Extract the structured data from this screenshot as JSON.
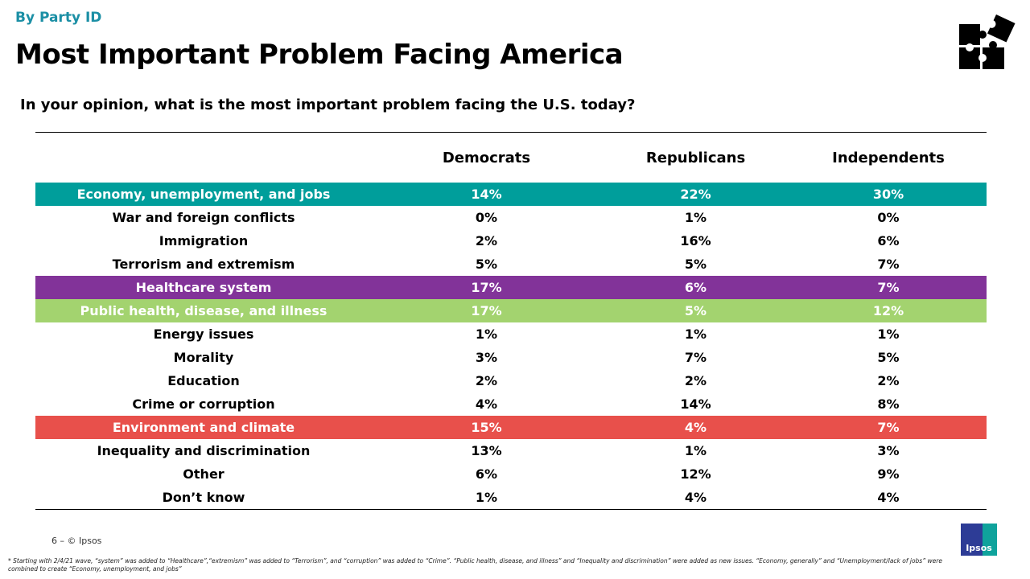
{
  "kicker": "By Party ID",
  "title": "Most Important Problem Facing America",
  "question": "In your opinion, what is the most important problem facing the U.S. today?",
  "colors": {
    "teal": "#009e9b",
    "purple": "#823399",
    "green": "#a3d36f",
    "red": "#e8504b"
  },
  "table": {
    "columns": [
      "",
      "Democrats",
      "Republicans",
      "Independents"
    ],
    "rows": [
      {
        "label": "Economy, unemployment, and jobs",
        "values": [
          "14%",
          "22%",
          "30%"
        ],
        "highlight": "#009e9b"
      },
      {
        "label": "War and foreign conflicts",
        "values": [
          "0%",
          "1%",
          "0%"
        ]
      },
      {
        "label": "Immigration",
        "values": [
          "2%",
          "16%",
          "6%"
        ]
      },
      {
        "label": "Terrorism and extremism",
        "values": [
          "5%",
          "5%",
          "7%"
        ]
      },
      {
        "label": "Healthcare system",
        "values": [
          "17%",
          "6%",
          "7%"
        ],
        "highlight": "#823399"
      },
      {
        "label": "Public health, disease, and illness",
        "values": [
          "17%",
          "5%",
          "12%"
        ],
        "highlight": "#a3d36f"
      },
      {
        "label": "Energy issues",
        "values": [
          "1%",
          "1%",
          "1%"
        ]
      },
      {
        "label": "Morality",
        "values": [
          "3%",
          "7%",
          "5%"
        ]
      },
      {
        "label": "Education",
        "values": [
          "2%",
          "2%",
          "2%"
        ]
      },
      {
        "label": "Crime or corruption",
        "values": [
          "4%",
          "14%",
          "8%"
        ]
      },
      {
        "label": "Environment and climate",
        "values": [
          "15%",
          "4%",
          "7%"
        ],
        "highlight": "#e8504b"
      },
      {
        "label": "Inequality and discrimination",
        "values": [
          "13%",
          "1%",
          "3%"
        ]
      },
      {
        "label": "Other",
        "values": [
          "6%",
          "12%",
          "9%"
        ]
      },
      {
        "label": "Don’t know",
        "values": [
          "1%",
          "4%",
          "4%"
        ]
      }
    ]
  },
  "footer": {
    "page": "6 –  © Ipsos",
    "logo_text": "Ipsos",
    "footnote": "* Starting with 2/4/21 wave, “system” was added to “Healthcare”,“extremism” was added to “Terrorism”, and “corruption” was added to “Crime”. “Public health, disease, and illness” and “Inequality and discrimination” were added as new issues. “Economy, generally” and “Unemployment/lack of jobs” were combined to create “Economy, unemployment, and jobs”"
  },
  "icons": {
    "header": "puzzle-pieces-icon"
  }
}
